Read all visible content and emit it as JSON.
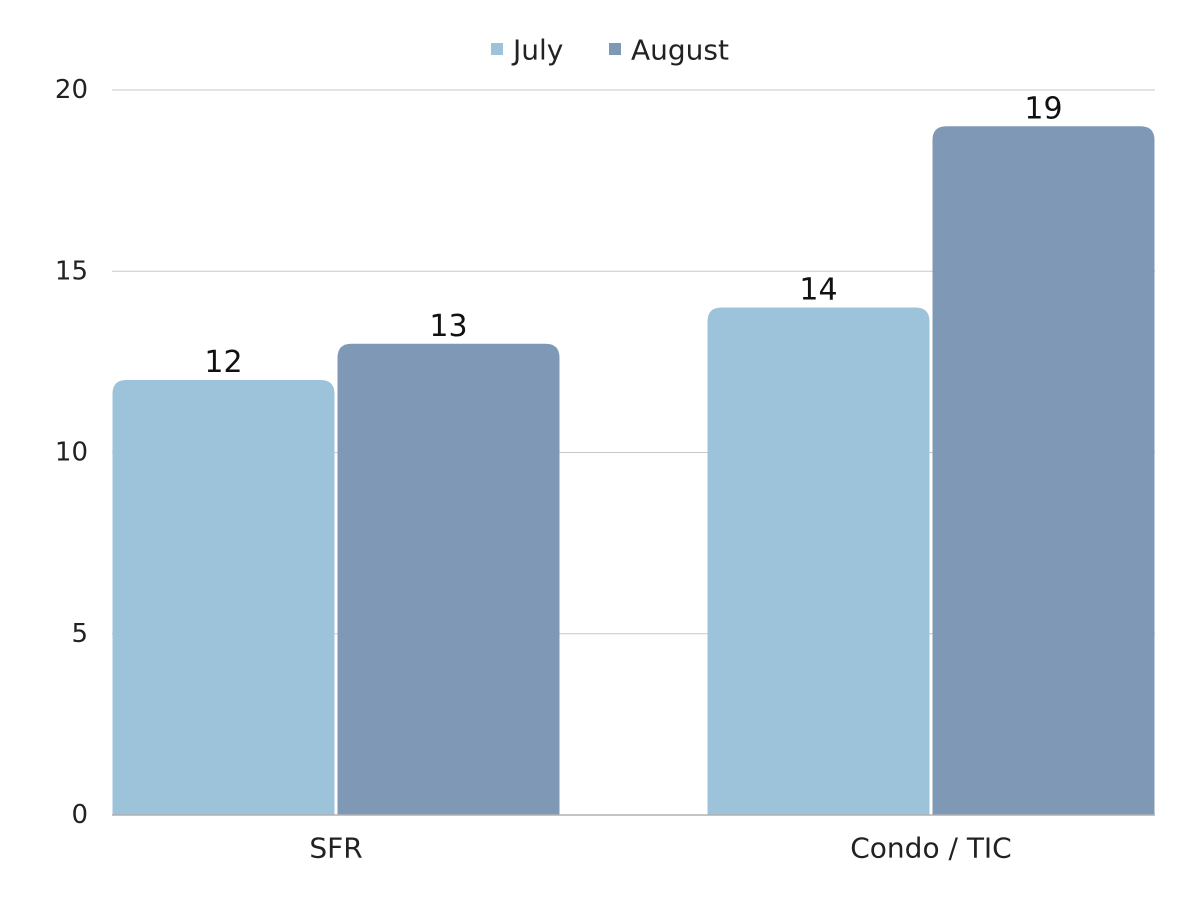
{
  "chart_data": {
    "type": "bar",
    "categories": [
      "SFR",
      "Condo / TIC"
    ],
    "series": [
      {
        "name": "July",
        "values": [
          12,
          14
        ],
        "color": "#9cc3d9"
      },
      {
        "name": "August",
        "values": [
          13,
          19
        ],
        "color": "#7f98b5"
      }
    ],
    "title": "",
    "xlabel": "",
    "ylabel": "",
    "ylim": [
      0,
      20
    ],
    "yticks": [
      0,
      5,
      10,
      15,
      20
    ],
    "grid": true,
    "legend_position": "top-center",
    "data_labels": true
  }
}
